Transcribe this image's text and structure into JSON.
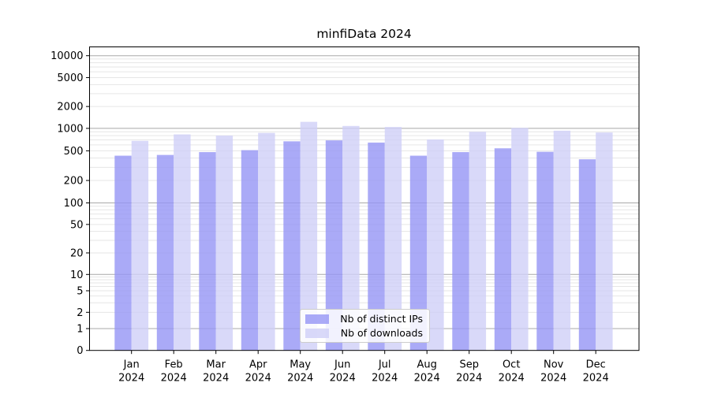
{
  "chart_data": {
    "type": "bar",
    "title": "minfiData 2024",
    "categories": [
      "Jan",
      "Feb",
      "Mar",
      "Apr",
      "May",
      "Jun",
      "Jul",
      "Aug",
      "Sep",
      "Oct",
      "Nov",
      "Dec"
    ],
    "category_year": "2024",
    "series": [
      {
        "name": "Nb of distinct IPs",
        "color": "#9595f5",
        "values": [
          430,
          440,
          480,
          510,
          670,
          690,
          645,
          430,
          480,
          540,
          485,
          385
        ]
      },
      {
        "name": "Nb of downloads",
        "color": "#cfcff7",
        "values": [
          680,
          830,
          800,
          870,
          1230,
          1080,
          1045,
          710,
          900,
          1015,
          930,
          880
        ]
      }
    ],
    "xlabel": "",
    "ylabel": "",
    "y_scale": "symlog",
    "y_ticks": [
      0,
      1,
      2,
      5,
      10,
      20,
      50,
      100,
      200,
      500,
      1000,
      2000,
      5000,
      10000
    ],
    "ylim": [
      0,
      13000
    ],
    "grid": true,
    "legend_position": "lower center"
  },
  "style": {
    "bar_opacity": "0.8",
    "grid_major_color": "#a8a8a8",
    "grid_minor_color": "#e6e6e6",
    "axis_color": "#000000",
    "background_color": "#ffffff",
    "text_color": "#000000"
  }
}
